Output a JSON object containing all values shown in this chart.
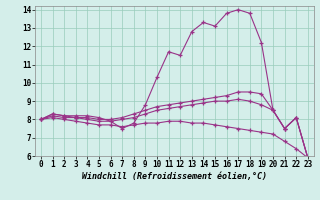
{
  "title": "",
  "xlabel": "Windchill (Refroidissement éolien,°C)",
  "bg_color": "#d4eeea",
  "grid_color": "#99ccbb",
  "line_color": "#993388",
  "xlim": [
    -0.5,
    23.5
  ],
  "ylim": [
    6,
    14.2
  ],
  "xticks": [
    0,
    1,
    2,
    3,
    4,
    5,
    6,
    7,
    8,
    9,
    10,
    11,
    12,
    13,
    14,
    15,
    16,
    17,
    18,
    19,
    20,
    21,
    22,
    23
  ],
  "yticks": [
    6,
    7,
    8,
    9,
    10,
    11,
    12,
    13,
    14
  ],
  "lines": [
    {
      "x": [
        0,
        1,
        2,
        3,
        4,
        5,
        6,
        7,
        8,
        9,
        10,
        11,
        12,
        13,
        14,
        15,
        16,
        17,
        18,
        19,
        20,
        21,
        22,
        23
      ],
      "y": [
        8.0,
        8.3,
        8.2,
        8.2,
        8.2,
        8.1,
        7.9,
        7.5,
        7.8,
        8.8,
        10.3,
        11.7,
        11.5,
        12.8,
        13.3,
        13.1,
        13.8,
        14.0,
        13.8,
        12.2,
        8.5,
        7.5,
        8.1,
        5.9
      ],
      "marker": "+"
    },
    {
      "x": [
        0,
        1,
        2,
        3,
        4,
        5,
        6,
        7,
        8,
        9,
        10,
        11,
        12,
        13,
        14,
        15,
        16,
        17,
        18,
        19,
        20,
        21,
        22,
        23
      ],
      "y": [
        8.0,
        8.3,
        8.2,
        8.1,
        8.1,
        8.0,
        8.0,
        8.1,
        8.3,
        8.5,
        8.7,
        8.8,
        8.9,
        9.0,
        9.1,
        9.2,
        9.3,
        9.5,
        9.5,
        9.4,
        8.5,
        7.5,
        8.1,
        5.9
      ],
      "marker": "+"
    },
    {
      "x": [
        0,
        1,
        2,
        3,
        4,
        5,
        6,
        7,
        8,
        9,
        10,
        11,
        12,
        13,
        14,
        15,
        16,
        17,
        18,
        19,
        20,
        21,
        22,
        23
      ],
      "y": [
        8.0,
        8.2,
        8.1,
        8.1,
        8.0,
        7.9,
        7.9,
        8.0,
        8.1,
        8.3,
        8.5,
        8.6,
        8.7,
        8.8,
        8.9,
        9.0,
        9.0,
        9.1,
        9.0,
        8.8,
        8.5,
        7.5,
        8.1,
        5.9
      ],
      "marker": "+"
    },
    {
      "x": [
        0,
        1,
        2,
        3,
        4,
        5,
        6,
        7,
        8,
        9,
        10,
        11,
        12,
        13,
        14,
        15,
        16,
        17,
        18,
        19,
        20,
        21,
        22,
        23
      ],
      "y": [
        8.0,
        8.1,
        8.0,
        7.9,
        7.8,
        7.7,
        7.7,
        7.6,
        7.7,
        7.8,
        7.8,
        7.9,
        7.9,
        7.8,
        7.8,
        7.7,
        7.6,
        7.5,
        7.4,
        7.3,
        7.2,
        6.8,
        6.4,
        5.9
      ],
      "marker": "+"
    }
  ]
}
